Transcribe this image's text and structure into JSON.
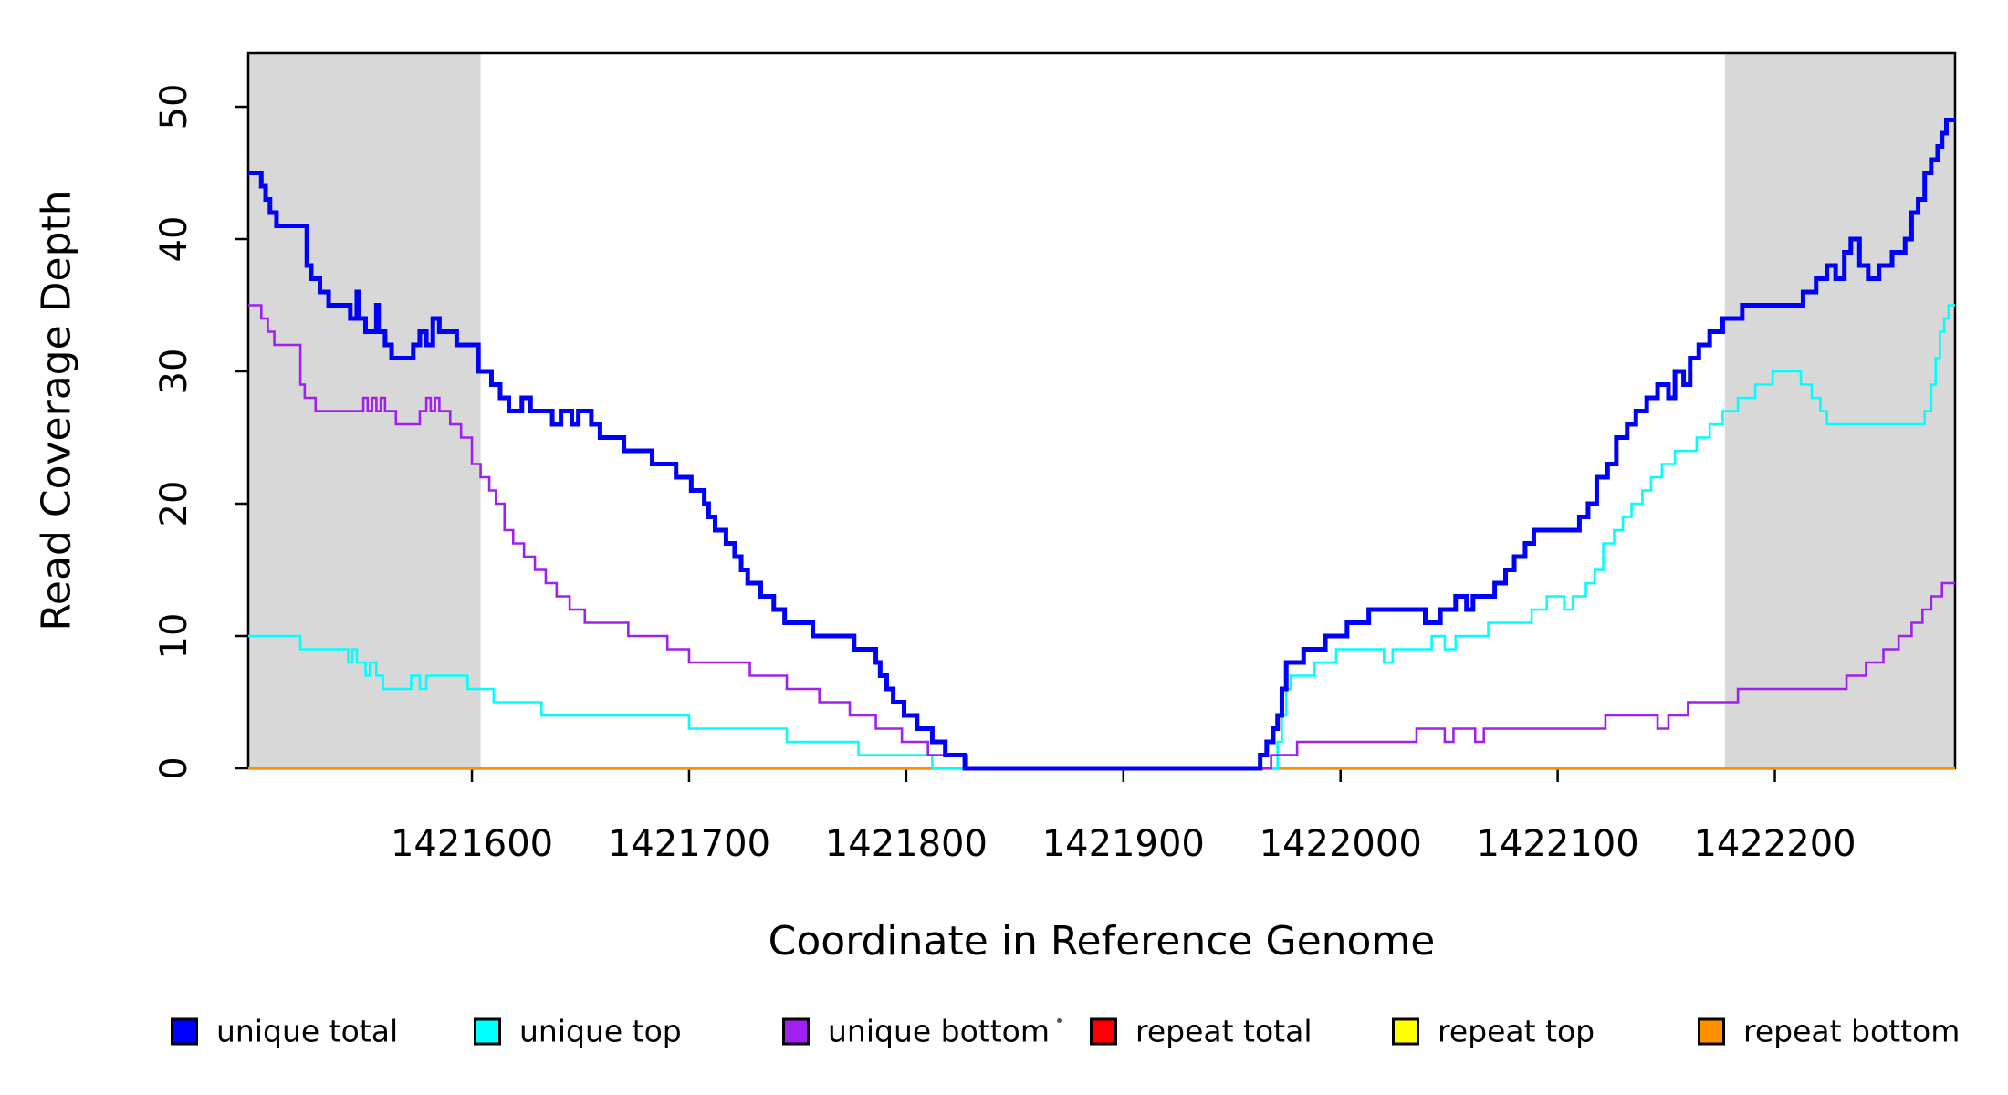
{
  "chart_data": {
    "type": "line",
    "subtype": "step",
    "title": "",
    "xlabel": "Coordinate in Reference Genome",
    "ylabel": "Read Coverage Depth",
    "xlim": [
      1421497,
      1422283
    ],
    "ylim": [
      0,
      54.07
    ],
    "x_ticks": [
      1421600,
      1421700,
      1421800,
      1421900,
      1422000,
      1422100,
      1422200
    ],
    "y_ticks": [
      0,
      10,
      20,
      30,
      40,
      50
    ],
    "grid": "off",
    "legend_position": "bottom",
    "background_color": "#ffffff",
    "shaded_regions": [
      {
        "x0": 1421497,
        "x1": 1421604,
        "color": "#d8d8d8"
      },
      {
        "x0": 1422177,
        "x1": 1422283,
        "color": "#d8d8d8"
      }
    ],
    "legend": [
      {
        "label": "unique total",
        "color": "#0000ff"
      },
      {
        "label": "unique top",
        "color": "#00ffff"
      },
      {
        "label": "unique bottom",
        "color": "#a020f0"
      },
      {
        "label": "repeat total",
        "color": "#ff0000"
      },
      {
        "label": "repeat top",
        "color": "#ffff00"
      },
      {
        "label": "repeat bottom",
        "color": "#ff9100"
      }
    ],
    "series": [
      {
        "name": "unique total",
        "color": "#0000ff",
        "width": 5,
        "points": [
          [
            1421497,
            45
          ],
          [
            1421503,
            44
          ],
          [
            1421505,
            43
          ],
          [
            1421507,
            42
          ],
          [
            1421510,
            41
          ],
          [
            1421524,
            38
          ],
          [
            1421526,
            37
          ],
          [
            1421530,
            36
          ],
          [
            1421534,
            35
          ],
          [
            1421544,
            34
          ],
          [
            1421547,
            36
          ],
          [
            1421548,
            34
          ],
          [
            1421551,
            33
          ],
          [
            1421556,
            35
          ],
          [
            1421557,
            33
          ],
          [
            1421560,
            32
          ],
          [
            1421563,
            31
          ],
          [
            1421573,
            32
          ],
          [
            1421576,
            33
          ],
          [
            1421579,
            32
          ],
          [
            1421582,
            34
          ],
          [
            1421585,
            33
          ],
          [
            1421593,
            32
          ],
          [
            1421603,
            30
          ],
          [
            1421609,
            29
          ],
          [
            1421613,
            28
          ],
          [
            1421617,
            27
          ],
          [
            1421623,
            28
          ],
          [
            1421627,
            27
          ],
          [
            1421637,
            26
          ],
          [
            1421641,
            27
          ],
          [
            1421646,
            26
          ],
          [
            1421649,
            27
          ],
          [
            1421655,
            26
          ],
          [
            1421659,
            25
          ],
          [
            1421670,
            24
          ],
          [
            1421683,
            23
          ],
          [
            1421694,
            22
          ],
          [
            1421701,
            21
          ],
          [
            1421707,
            20
          ],
          [
            1421709,
            19
          ],
          [
            1421712,
            18
          ],
          [
            1421717,
            17
          ],
          [
            1421721,
            16
          ],
          [
            1421724,
            15
          ],
          [
            1421727,
            14
          ],
          [
            1421733,
            13
          ],
          [
            1421739,
            12
          ],
          [
            1421744,
            11
          ],
          [
            1421757,
            10
          ],
          [
            1421776,
            9
          ],
          [
            1421786,
            8
          ],
          [
            1421788,
            7
          ],
          [
            1421791,
            6
          ],
          [
            1421794,
            5
          ],
          [
            1421799,
            4
          ],
          [
            1421805,
            3
          ],
          [
            1421812,
            2
          ],
          [
            1421818,
            1
          ],
          [
            1421827,
            0
          ],
          [
            1421963,
            1
          ],
          [
            1421966,
            2
          ],
          [
            1421969,
            3
          ],
          [
            1421971,
            4
          ],
          [
            1421973,
            6
          ],
          [
            1421975,
            8
          ],
          [
            1421983,
            9
          ],
          [
            1421993,
            10
          ],
          [
            1422003,
            11
          ],
          [
            1422013,
            12
          ],
          [
            1422039,
            11
          ],
          [
            1422046,
            12
          ],
          [
            1422053,
            13
          ],
          [
            1422058,
            12
          ],
          [
            1422061,
            13
          ],
          [
            1422071,
            14
          ],
          [
            1422076,
            15
          ],
          [
            1422080,
            16
          ],
          [
            1422085,
            17
          ],
          [
            1422089,
            18
          ],
          [
            1422110,
            19
          ],
          [
            1422114,
            20
          ],
          [
            1422118,
            22
          ],
          [
            1422123,
            23
          ],
          [
            1422127,
            25
          ],
          [
            1422132,
            26
          ],
          [
            1422136,
            27
          ],
          [
            1422141,
            28
          ],
          [
            1422146,
            29
          ],
          [
            1422151,
            28
          ],
          [
            1422154,
            30
          ],
          [
            1422158,
            29
          ],
          [
            1422161,
            31
          ],
          [
            1422165,
            32
          ],
          [
            1422170,
            33
          ],
          [
            1422176,
            34
          ],
          [
            1422185,
            35
          ],
          [
            1422213,
            36
          ],
          [
            1422219,
            37
          ],
          [
            1422224,
            38
          ],
          [
            1422228,
            37
          ],
          [
            1422232,
            39
          ],
          [
            1422235,
            40
          ],
          [
            1422239,
            38
          ],
          [
            1422243,
            37
          ],
          [
            1422248,
            38
          ],
          [
            1422254,
            39
          ],
          [
            1422260,
            40
          ],
          [
            1422263,
            42
          ],
          [
            1422266,
            43
          ],
          [
            1422269,
            45
          ],
          [
            1422272,
            46
          ],
          [
            1422275,
            47
          ],
          [
            1422277,
            48
          ],
          [
            1422279,
            49
          ]
        ]
      },
      {
        "name": "unique top",
        "color": "#00ffff",
        "width": 2.6,
        "points": [
          [
            1421497,
            10
          ],
          [
            1421521,
            9
          ],
          [
            1421543,
            8
          ],
          [
            1421545,
            9
          ],
          [
            1421547,
            8
          ],
          [
            1421551,
            7
          ],
          [
            1421553,
            8
          ],
          [
            1421556,
            7
          ],
          [
            1421559,
            6
          ],
          [
            1421572,
            7
          ],
          [
            1421576,
            6
          ],
          [
            1421579,
            7
          ],
          [
            1421598,
            6
          ],
          [
            1421610,
            5
          ],
          [
            1421632,
            4
          ],
          [
            1421700,
            3
          ],
          [
            1421745,
            2
          ],
          [
            1421778,
            1
          ],
          [
            1421812,
            0
          ],
          [
            1421971,
            2
          ],
          [
            1421973,
            4
          ],
          [
            1421975,
            6
          ],
          [
            1421977,
            7
          ],
          [
            1421988,
            8
          ],
          [
            1421998,
            9
          ],
          [
            1422020,
            8
          ],
          [
            1422024,
            9
          ],
          [
            1422042,
            10
          ],
          [
            1422048,
            9
          ],
          [
            1422053,
            10
          ],
          [
            1422068,
            11
          ],
          [
            1422088,
            12
          ],
          [
            1422095,
            13
          ],
          [
            1422103,
            12
          ],
          [
            1422107,
            13
          ],
          [
            1422113,
            14
          ],
          [
            1422117,
            15
          ],
          [
            1422121,
            17
          ],
          [
            1422126,
            18
          ],
          [
            1422130,
            19
          ],
          [
            1422134,
            20
          ],
          [
            1422139,
            21
          ],
          [
            1422143,
            22
          ],
          [
            1422148,
            23
          ],
          [
            1422154,
            24
          ],
          [
            1422164,
            25
          ],
          [
            1422170,
            26
          ],
          [
            1422176,
            27
          ],
          [
            1422183,
            28
          ],
          [
            1422191,
            29
          ],
          [
            1422199,
            30
          ],
          [
            1422212,
            29
          ],
          [
            1422217,
            28
          ],
          [
            1422221,
            27
          ],
          [
            1422224,
            26
          ],
          [
            1422269,
            27
          ],
          [
            1422272,
            29
          ],
          [
            1422274,
            31
          ],
          [
            1422276,
            33
          ],
          [
            1422278,
            34
          ],
          [
            1422280,
            35
          ]
        ]
      },
      {
        "name": "unique bottom",
        "color": "#a020f0",
        "width": 2.6,
        "points": [
          [
            1421497,
            35
          ],
          [
            1421503,
            34
          ],
          [
            1421506,
            33
          ],
          [
            1421509,
            32
          ],
          [
            1421521,
            29
          ],
          [
            1421523,
            28
          ],
          [
            1421528,
            27
          ],
          [
            1421550,
            28
          ],
          [
            1421552,
            27
          ],
          [
            1421554,
            28
          ],
          [
            1421556,
            27
          ],
          [
            1421558,
            28
          ],
          [
            1421560,
            27
          ],
          [
            1421565,
            26
          ],
          [
            1421576,
            27
          ],
          [
            1421579,
            28
          ],
          [
            1421581,
            27
          ],
          [
            1421583,
            28
          ],
          [
            1421585,
            27
          ],
          [
            1421590,
            26
          ],
          [
            1421595,
            25
          ],
          [
            1421600,
            23
          ],
          [
            1421604,
            22
          ],
          [
            1421608,
            21
          ],
          [
            1421611,
            20
          ],
          [
            1421615,
            18
          ],
          [
            1421619,
            17
          ],
          [
            1421624,
            16
          ],
          [
            1421629,
            15
          ],
          [
            1421634,
            14
          ],
          [
            1421639,
            13
          ],
          [
            1421645,
            12
          ],
          [
            1421652,
            11
          ],
          [
            1421672,
            10
          ],
          [
            1421690,
            9
          ],
          [
            1421700,
            8
          ],
          [
            1421728,
            7
          ],
          [
            1421745,
            6
          ],
          [
            1421760,
            5
          ],
          [
            1421774,
            4
          ],
          [
            1421786,
            3
          ],
          [
            1421798,
            2
          ],
          [
            1421810,
            1
          ],
          [
            1421828,
            0
          ],
          [
            1421968,
            1
          ],
          [
            1421980,
            2
          ],
          [
            1422035,
            3
          ],
          [
            1422048,
            2
          ],
          [
            1422052,
            3
          ],
          [
            1422062,
            2
          ],
          [
            1422066,
            3
          ],
          [
            1422122,
            4
          ],
          [
            1422146,
            3
          ],
          [
            1422151,
            4
          ],
          [
            1422160,
            5
          ],
          [
            1422183,
            6
          ],
          [
            1422233,
            7
          ],
          [
            1422242,
            8
          ],
          [
            1422250,
            9
          ],
          [
            1422257,
            10
          ],
          [
            1422263,
            11
          ],
          [
            1422268,
            12
          ],
          [
            1422272,
            13
          ],
          [
            1422277,
            14
          ]
        ]
      },
      {
        "name": "repeat total",
        "color": "#ff0000",
        "width": 2.6,
        "points": [
          [
            1421497,
            0
          ]
        ]
      },
      {
        "name": "repeat top",
        "color": "#ffff00",
        "width": 2.6,
        "points": [
          [
            1421497,
            0
          ]
        ]
      },
      {
        "name": "repeat bottom",
        "color": "#ff9100",
        "width": 3.5,
        "points": [
          [
            1421497,
            0
          ]
        ]
      }
    ]
  }
}
